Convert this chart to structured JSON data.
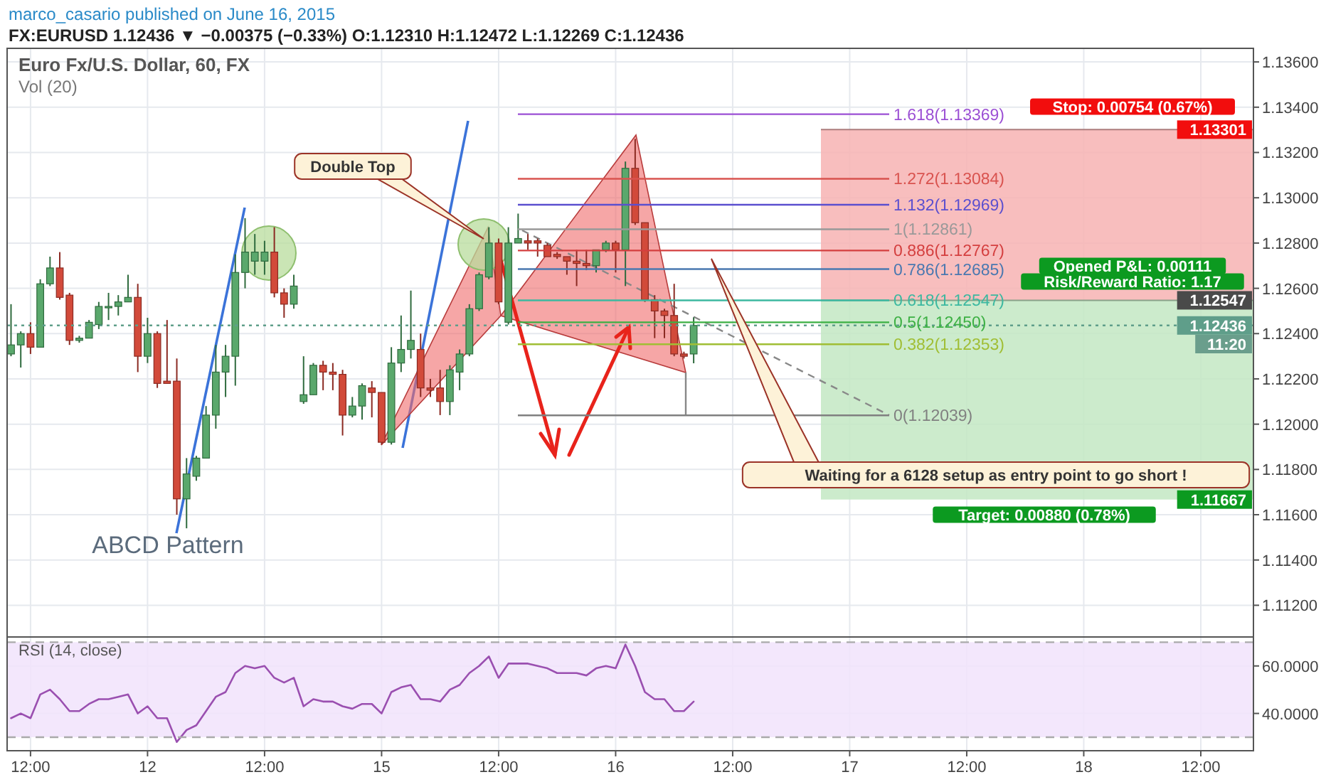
{
  "chart_data": [
    {
      "type": "candlestick",
      "title": "Euro Fx/U.S. Dollar, 60, FX",
      "subtitle": "Vol (20)",
      "categories": [
        null,
        null,
        null,
        null,
        null,
        null,
        null,
        null,
        null,
        null,
        null,
        null,
        null,
        null,
        null,
        null,
        null,
        null,
        null,
        null,
        null,
        null,
        null,
        null,
        null,
        null,
        null,
        null,
        null,
        null,
        null,
        null,
        null,
        null,
        null,
        null,
        null,
        null,
        null,
        null,
        null,
        null,
        null,
        null,
        null,
        null,
        null,
        null,
        null,
        null,
        null,
        null,
        null,
        null,
        null,
        null,
        null,
        null,
        null,
        null,
        null,
        null,
        null,
        null,
        null,
        null,
        null,
        null,
        null,
        null,
        null,
        null,
        null,
        null,
        null,
        null,
        null,
        null,
        null,
        null,
        null,
        null,
        null,
        null,
        null,
        null,
        null,
        null,
        null,
        null,
        null,
        null,
        null,
        null,
        null,
        null,
        null,
        null,
        null,
        null,
        null,
        null,
        null,
        null,
        null,
        null,
        null,
        null,
        null,
        null,
        null,
        null,
        null,
        null,
        null,
        null,
        null,
        null,
        null,
        null,
        null,
        null,
        null,
        null,
        null,
        null,
        null,
        null
      ],
      "ohlc": [
        [
          1.1231,
          1.1253,
          1.123,
          1.1235
        ],
        [
          1.1235,
          1.1241,
          1.1225,
          1.124
        ],
        [
          1.124,
          1.1245,
          1.1231,
          1.1234
        ],
        [
          1.1234,
          1.1264,
          1.1234,
          1.1262
        ],
        [
          1.1262,
          1.1274,
          1.1261,
          1.1269
        ],
        [
          1.1269,
          1.1276,
          1.1255,
          1.1256
        ],
        [
          1.1257,
          1.1258,
          1.1235,
          1.1237
        ],
        [
          1.1237,
          1.1239,
          1.1236,
          1.1238
        ],
        [
          1.1238,
          1.1246,
          1.1238,
          1.1245
        ],
        [
          1.1244,
          1.1254,
          1.1242,
          1.1252
        ],
        [
          1.1252,
          1.1258,
          1.1246,
          1.1252
        ],
        [
          1.1252,
          1.1257,
          1.1248,
          1.1254
        ],
        [
          1.1254,
          1.1266,
          1.1254,
          1.1256
        ],
        [
          1.1256,
          1.1262,
          1.1223,
          1.123
        ],
        [
          1.123,
          1.1247,
          1.1227,
          1.124
        ],
        [
          1.124,
          1.1241,
          1.1216,
          1.1218
        ],
        [
          1.1219,
          1.1246,
          1.1218,
          1.1218
        ],
        [
          1.1219,
          1.1229,
          1.116,
          1.1167
        ],
        [
          1.1167,
          1.1185,
          1.1154,
          1.1178
        ],
        [
          1.1177,
          1.1186,
          1.1175,
          1.1185
        ],
        [
          1.1185,
          1.1208,
          1.1185,
          1.1204
        ],
        [
          1.1204,
          1.1235,
          1.1198,
          1.1223
        ],
        [
          1.1223,
          1.1235,
          1.1212,
          1.123
        ],
        [
          1.123,
          1.1275,
          1.1217,
          1.1267
        ],
        [
          1.1267,
          1.1291,
          1.126,
          1.1276
        ],
        [
          1.1272,
          1.1284,
          1.1266,
          1.1276
        ],
        [
          1.1272,
          1.1281,
          1.1266,
          1.1276
        ],
        [
          1.1276,
          1.1287,
          1.1256,
          1.1258
        ],
        [
          1.1258,
          1.126,
          1.1247,
          1.1253
        ],
        [
          1.1253,
          1.1266,
          1.1251,
          1.1261
        ],
        [
          1.121,
          1.123,
          1.1209,
          1.1213
        ],
        [
          1.1213,
          1.1227,
          1.1213,
          1.1226
        ],
        [
          1.1226,
          1.1228,
          1.1215,
          1.1223
        ],
        [
          1.1223,
          1.1227,
          1.1215,
          1.1222
        ],
        [
          1.1222,
          1.1224,
          1.1195,
          1.1204
        ],
        [
          1.1204,
          1.1212,
          1.1203,
          1.1208
        ],
        [
          1.1208,
          1.1218,
          1.1202,
          1.1217
        ],
        [
          1.1216,
          1.1219,
          1.1203,
          1.1214
        ],
        [
          1.1214,
          1.1214,
          1.1191,
          1.1192
        ],
        [
          1.1192,
          1.1234,
          1.1191,
          1.1227
        ],
        [
          1.1227,
          1.1248,
          1.1223,
          1.1233
        ],
        [
          1.1233,
          1.1259,
          1.1229,
          1.1237
        ],
        [
          1.1233,
          1.124,
          1.1212,
          1.1216
        ],
        [
          1.1216,
          1.122,
          1.1212,
          1.1215
        ],
        [
          1.1216,
          1.1224,
          1.1204,
          1.121
        ],
        [
          1.121,
          1.1226,
          1.1204,
          1.1224
        ],
        [
          1.1223,
          1.1233,
          1.1215,
          1.1231
        ],
        [
          1.1231,
          1.1253,
          1.123,
          1.1251
        ],
        [
          1.1251,
          1.1267,
          1.125,
          1.1266
        ],
        [
          1.1265,
          1.1287,
          1.1264,
          1.128
        ],
        [
          1.128,
          1.1282,
          1.1253,
          1.1254
        ],
        [
          1.1245,
          1.1287,
          1.1244,
          1.128
        ],
        [
          1.128,
          1.1293,
          1.128,
          1.1282
        ],
        [
          1.1281,
          1.1284,
          1.1277,
          1.128
        ],
        [
          1.1281,
          1.1282,
          1.1274,
          1.128
        ],
        [
          1.1279,
          1.128,
          1.1274,
          1.1274
        ],
        [
          1.1275,
          1.1276,
          1.1273,
          1.1274
        ],
        [
          1.1274,
          1.1274,
          1.1266,
          1.1272
        ],
        [
          1.1272,
          1.1277,
          1.1261,
          1.1271
        ],
        [
          1.1271,
          1.1277,
          1.1268,
          1.127
        ],
        [
          1.127,
          1.1277,
          1.1267,
          1.1277
        ],
        [
          1.1277,
          1.1281,
          1.1276,
          1.128
        ],
        [
          1.128,
          1.1281,
          1.1267,
          1.1277
        ],
        [
          1.1277,
          1.1316,
          1.1261,
          1.1313
        ],
        [
          1.1313,
          1.1326,
          1.1288,
          1.1289
        ],
        [
          1.1289,
          1.1289,
          1.1254,
          1.1255
        ],
        [
          1.1255,
          1.1257,
          1.1238,
          1.125
        ],
        [
          1.125,
          1.1251,
          1.1238,
          1.1248
        ],
        [
          1.1248,
          1.1262,
          1.123,
          1.1231
        ],
        [
          1.1231,
          1.1232,
          1.1229,
          1.123
        ],
        [
          1.1231,
          1.12472,
          1.12269,
          1.12436
        ],
        null,
        null,
        null,
        null,
        null,
        null,
        null,
        null,
        null,
        null,
        null,
        null,
        null,
        null,
        null,
        null,
        null,
        null,
        null,
        null,
        null,
        null,
        null,
        null,
        null,
        null,
        null,
        null,
        null,
        null,
        null,
        null,
        null,
        null,
        null,
        null,
        null,
        null,
        null,
        null,
        null,
        null,
        null,
        null,
        null,
        null,
        null,
        null,
        null,
        null,
        null,
        null,
        null,
        null,
        null,
        null,
        null
      ],
      "ylim": [
        1.1106,
        1.1366
      ],
      "yticks": [
        {
          "value": 1.112,
          "label": "1.11200"
        },
        {
          "value": 1.114,
          "label": "1.11400"
        },
        {
          "value": 1.116,
          "label": "1.11600"
        },
        {
          "value": 1.118,
          "label": "1.11800"
        },
        {
          "value": 1.12,
          "label": "1.12000"
        },
        {
          "value": 1.122,
          "label": "1.12200"
        },
        {
          "value": 1.124,
          "label": "1.12400"
        },
        {
          "value": 1.126,
          "label": "1.12600"
        },
        {
          "value": 1.128,
          "label": "1.12800"
        },
        {
          "value": 1.13,
          "label": "1.13000"
        },
        {
          "value": 1.132,
          "label": "1.13200"
        },
        {
          "value": 1.134,
          "label": "1.13400"
        },
        {
          "value": 1.136,
          "label": "1.13600"
        }
      ],
      "grid": true,
      "bands": [
        {
          "axis": "y",
          "from": 1.12547,
          "to": 1.13301,
          "color": "#f7b3b3"
        },
        {
          "axis": "y",
          "from": 1.11667,
          "to": 1.12547,
          "color": "#c3e8c3"
        }
      ],
      "ref_lines": [
        {
          "axis": "y",
          "value": 1.12436,
          "label": "1.12436",
          "color": "#5f9e8a",
          "line_style": "dotted"
        },
        {
          "axis": "y",
          "value": 1.13369,
          "label": "1.618(1.13369)",
          "color": "#9b4fd4"
        },
        {
          "axis": "y",
          "value": 1.13084,
          "label": "1.272(1.13084)",
          "color": "#d9534f"
        },
        {
          "axis": "y",
          "value": 1.12969,
          "label": "1.132(1.12969)",
          "color": "#5b4fcf"
        },
        {
          "axis": "y",
          "value": 1.12861,
          "label": "1(1.12861)",
          "color": "#999999"
        },
        {
          "axis": "y",
          "value": 1.12767,
          "label": "0.886(1.12767)",
          "color": "#d43f3f"
        },
        {
          "axis": "y",
          "value": 1.12685,
          "label": "0.786(1.12685)",
          "color": "#4a78b0"
        },
        {
          "axis": "y",
          "value": 1.12547,
          "label": "0.618(1.12547)",
          "color": "#3cb8a0"
        },
        {
          "axis": "y",
          "value": 1.1245,
          "label": "0.5(1.12450)",
          "color": "#3cb043"
        },
        {
          "axis": "y",
          "value": 1.12353,
          "label": "0.382(1.12353)",
          "color": "#a0be34"
        },
        {
          "axis": "y",
          "value": 1.12039,
          "label": "0(1.12039)",
          "color": "#808080"
        }
      ],
      "annotations": [
        "marco_casario published on June 16, 2015",
        "FX:EURUSD 1.12436 ▼ −0.00375 (−0.33%) O:1.12310 H:1.12472 L:1.12269 C:1.12436",
        "Double Top",
        "ABCD Pattern",
        "Stop: 0.00754 (0.67%)",
        "Opened P&L: 0.00111",
        "Risk/Reward Ratio: 1.17",
        "Waiting for a 6128 setup as entry point to go short !",
        "Target: 0.00880 (0.78%)",
        {
          "text": "1.13301",
          "y": 1.13301
        },
        {
          "text": "1.12547",
          "y": 1.12547
        },
        {
          "text": "1.11667",
          "y": 1.11667
        },
        "11:20"
      ]
    },
    {
      "type": "line",
      "title": "RSI (14, close)",
      "color": "#9a4fb0",
      "categories": [
        null,
        null,
        "12:00",
        null,
        null,
        null,
        null,
        null,
        null,
        null,
        null,
        null,
        null,
        null,
        "12",
        null,
        null,
        null,
        null,
        null,
        null,
        null,
        null,
        null,
        null,
        null,
        "12:00",
        null,
        null,
        null,
        null,
        null,
        null,
        null,
        null,
        null,
        null,
        null,
        "15",
        null,
        null,
        null,
        null,
        null,
        null,
        null,
        null,
        null,
        null,
        null,
        "12:00",
        null,
        null,
        null,
        null,
        null,
        null,
        null,
        null,
        null,
        null,
        null,
        "16",
        null,
        null,
        null,
        null,
        null,
        null,
        null,
        null,
        null,
        null,
        null,
        "12:00",
        null,
        null,
        null,
        null,
        null,
        null,
        null,
        null,
        null,
        null,
        null,
        "17",
        null,
        null,
        null,
        null,
        null,
        null,
        null,
        null,
        null,
        null,
        null,
        "12:00",
        null,
        null,
        null,
        null,
        null,
        null,
        null,
        null,
        null,
        null,
        null,
        "18",
        null,
        null,
        null,
        null,
        null,
        null,
        null,
        null,
        null,
        null,
        null,
        "12:00",
        null,
        null,
        null,
        null,
        null
      ],
      "values": [
        38,
        40,
        38,
        48,
        50,
        46,
        41,
        41,
        44,
        46,
        46,
        47,
        48,
        40,
        43,
        38,
        38,
        28,
        33,
        35,
        41,
        47,
        49,
        57,
        60,
        59,
        60,
        55,
        53,
        55,
        43,
        46,
        45,
        45,
        43,
        42,
        44,
        44,
        40,
        49,
        51,
        52,
        46,
        46,
        45,
        50,
        52,
        57,
        60,
        64,
        55,
        61,
        61,
        61,
        60,
        59,
        57,
        57,
        57,
        56,
        59,
        60,
        59,
        69,
        60,
        49,
        46,
        46,
        41,
        41,
        45,
        null,
        null,
        null,
        null,
        null,
        null,
        null,
        null,
        null,
        null,
        null,
        null,
        null,
        null,
        null,
        null,
        null,
        null,
        null,
        null,
        null,
        null,
        null,
        null,
        null,
        null,
        null,
        null,
        null,
        null,
        null,
        null,
        null,
        null,
        null,
        null,
        null,
        null,
        null,
        null,
        null,
        null,
        null,
        null,
        null,
        null,
        null,
        null,
        null,
        null,
        null,
        null,
        null,
        null,
        null,
        null,
        null
      ],
      "ylim": [
        24.3,
        72.2
      ],
      "yticks": [
        {
          "value": 40,
          "label": "40.0000"
        },
        {
          "value": 60,
          "label": "60.0000"
        }
      ],
      "grid": true,
      "bands": [
        {
          "axis": "y",
          "from": 30,
          "to": 70,
          "color": "#f1e3fb"
        }
      ],
      "ref_lines": [
        {
          "axis": "y",
          "value": 70,
          "color": "#aaaaaa",
          "line_style": "dashed"
        },
        {
          "axis": "y",
          "value": 30,
          "color": "#aaaaaa",
          "line_style": "dashed"
        }
      ]
    }
  ]
}
